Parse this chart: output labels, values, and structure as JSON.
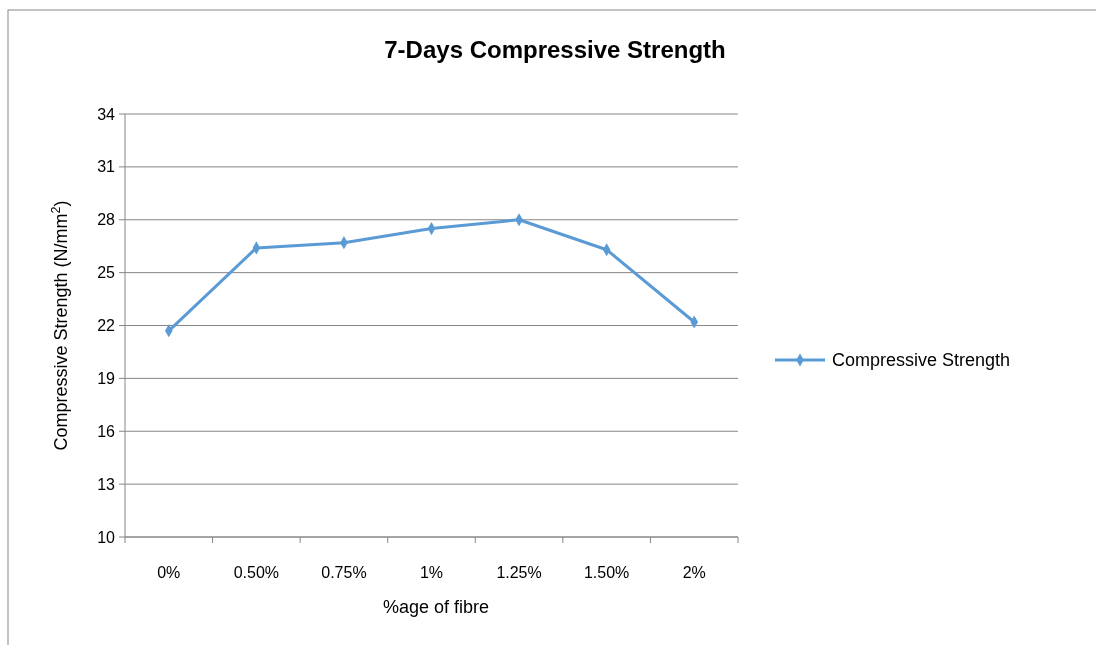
{
  "chart_data": {
    "type": "line",
    "title": "7-Days Compressive Strength",
    "xlabel": "%age of fibre",
    "ylabel": "Compressive Strength (N/mm$^{2}$)",
    "categories": [
      "0%",
      "0.50%",
      "0.75%",
      "1%",
      "1.25%",
      "1.50%",
      "2%"
    ],
    "series": [
      {
        "name": "Compressive Strength",
        "color": "#5b9bd5",
        "values": [
          21.7,
          26.4,
          26.7,
          27.5,
          28.0,
          26.3,
          22.2
        ]
      }
    ],
    "ylim": [
      10,
      34
    ],
    "yticks": [
      10,
      13,
      16,
      19,
      22,
      25,
      28,
      31,
      34
    ],
    "grid": "y",
    "legend": "right",
    "marker": "diamond",
    "line_style": "solid"
  }
}
